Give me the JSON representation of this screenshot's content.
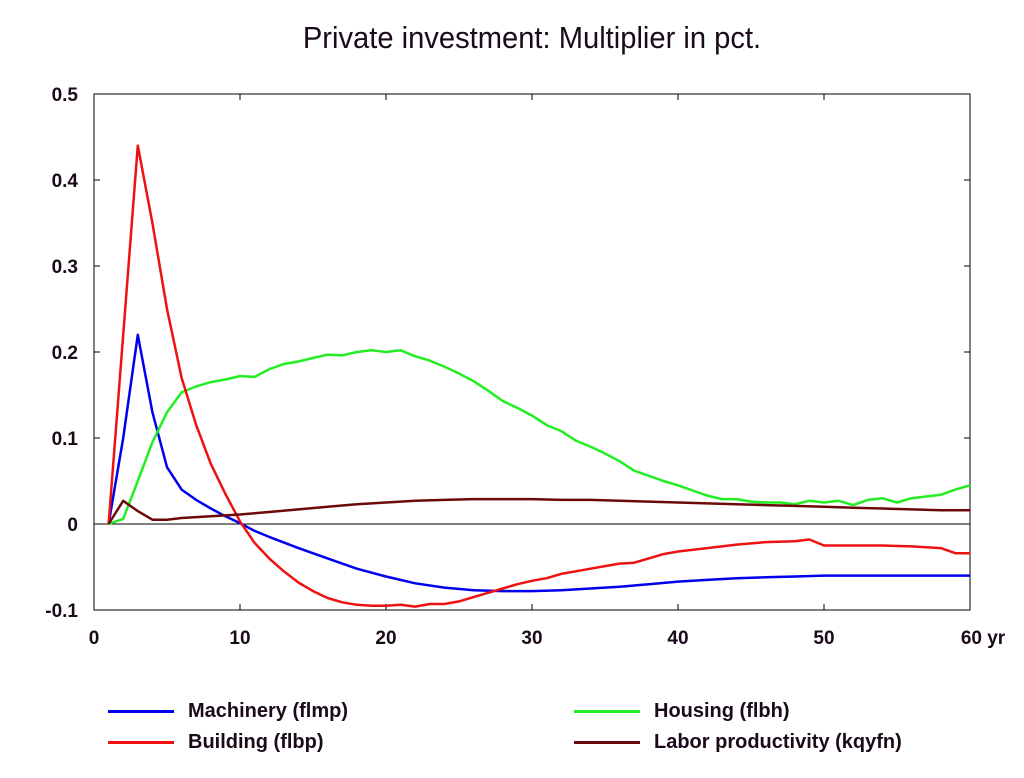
{
  "chart_data": {
    "type": "line",
    "title": "Private investment: Multiplier in pct.",
    "xlabel": "",
    "ylabel": "",
    "x_unit": "yr",
    "xlim": [
      0,
      60
    ],
    "ylim": [
      -0.1,
      0.5
    ],
    "x_ticks": [
      0,
      10,
      20,
      30,
      40,
      50,
      60
    ],
    "x_tick_labels": [
      "0",
      "10",
      "20",
      "30",
      "40",
      "50",
      "60 yr"
    ],
    "y_ticks": [
      -0.1,
      0,
      0.1,
      0.2,
      0.3,
      0.4,
      0.5
    ],
    "y_tick_labels": [
      "-0.1",
      "0",
      "0.1",
      "0.2",
      "0.3",
      "0.4",
      "0.5"
    ],
    "zero_line": true,
    "grid": false,
    "legend_position": "bottom",
    "series": [
      {
        "name": "Machinery (flmp)",
        "color": "#0000ee",
        "x": [
          1,
          2,
          3,
          4,
          5,
          6,
          7,
          8,
          9,
          10,
          11,
          12,
          14,
          16,
          18,
          20,
          22,
          24,
          26,
          28,
          30,
          32,
          34,
          36,
          38,
          40,
          42,
          44,
          46,
          48,
          50,
          52,
          54,
          56,
          58,
          60
        ],
        "y": [
          0,
          0.1,
          0.22,
          0.13,
          0.066,
          0.04,
          0.028,
          0.018,
          0.009,
          0.001,
          -0.008,
          -0.015,
          -0.028,
          -0.04,
          -0.052,
          -0.061,
          -0.069,
          -0.074,
          -0.077,
          -0.078,
          -0.078,
          -0.077,
          -0.075,
          -0.073,
          -0.07,
          -0.067,
          -0.065,
          -0.063,
          -0.062,
          -0.061,
          -0.06,
          -0.06,
          -0.06,
          -0.06,
          -0.06,
          -0.06
        ]
      },
      {
        "name": "Housing (flbh)",
        "color": "#22ee22",
        "x": [
          1,
          2,
          3,
          4,
          5,
          6,
          7,
          8,
          9,
          10,
          11,
          12,
          13,
          14,
          15,
          16,
          17,
          18,
          19,
          20,
          21,
          22,
          23,
          24,
          25,
          26,
          27,
          28,
          29,
          30,
          31,
          32,
          33,
          34,
          35,
          36,
          37,
          38,
          39,
          40,
          41,
          42,
          43,
          44,
          45,
          46,
          47,
          48,
          49,
          50,
          51,
          52,
          53,
          54,
          55,
          56,
          57,
          58,
          59,
          60
        ],
        "y": [
          0,
          0.006,
          0.05,
          0.095,
          0.13,
          0.153,
          0.16,
          0.165,
          0.168,
          0.172,
          0.171,
          0.18,
          0.186,
          0.189,
          0.193,
          0.197,
          0.196,
          0.2,
          0.202,
          0.2,
          0.202,
          0.195,
          0.19,
          0.183,
          0.175,
          0.166,
          0.155,
          0.143,
          0.135,
          0.126,
          0.115,
          0.108,
          0.097,
          0.09,
          0.082,
          0.073,
          0.062,
          0.056,
          0.05,
          0.045,
          0.039,
          0.033,
          0.029,
          0.029,
          0.026,
          0.025,
          0.025,
          0.023,
          0.027,
          0.025,
          0.027,
          0.022,
          0.028,
          0.03,
          0.025,
          0.03,
          0.032,
          0.034,
          0.04,
          0.045
        ]
      },
      {
        "name": "Building (flbp)",
        "color": "#ee1111",
        "x": [
          1,
          2,
          3,
          4,
          5,
          6,
          7,
          8,
          9,
          10,
          11,
          12,
          13,
          14,
          15,
          16,
          17,
          18,
          19,
          20,
          21,
          22,
          23,
          24,
          25,
          26,
          27,
          28,
          29,
          30,
          31,
          32,
          33,
          34,
          35,
          36,
          37,
          38,
          39,
          40,
          42,
          44,
          46,
          48,
          49,
          50,
          52,
          54,
          56,
          58,
          59,
          60
        ],
        "y": [
          0,
          0.22,
          0.44,
          0.35,
          0.25,
          0.17,
          0.115,
          0.07,
          0.035,
          0.003,
          -0.022,
          -0.04,
          -0.055,
          -0.068,
          -0.078,
          -0.086,
          -0.091,
          -0.094,
          -0.095,
          -0.095,
          -0.094,
          -0.096,
          -0.093,
          -0.093,
          -0.09,
          -0.085,
          -0.08,
          -0.075,
          -0.07,
          -0.066,
          -0.063,
          -0.058,
          -0.055,
          -0.052,
          -0.049,
          -0.046,
          -0.045,
          -0.04,
          -0.035,
          -0.032,
          -0.028,
          -0.024,
          -0.021,
          -0.02,
          -0.018,
          -0.025,
          -0.025,
          -0.025,
          -0.026,
          -0.028,
          -0.034,
          -0.034
        ]
      },
      {
        "name": "Labor productivity (kqyfn)",
        "color": "#6b0a0a",
        "x": [
          1,
          2,
          3,
          4,
          5,
          6,
          8,
          10,
          12,
          14,
          16,
          18,
          20,
          22,
          24,
          26,
          28,
          30,
          32,
          34,
          36,
          38,
          40,
          42,
          44,
          46,
          48,
          50,
          52,
          54,
          56,
          58,
          60
        ],
        "y": [
          0,
          0.027,
          0.015,
          0.005,
          0.005,
          0.007,
          0.009,
          0.011,
          0.014,
          0.017,
          0.02,
          0.023,
          0.025,
          0.027,
          0.028,
          0.029,
          0.029,
          0.029,
          0.028,
          0.028,
          0.027,
          0.026,
          0.025,
          0.024,
          0.023,
          0.022,
          0.021,
          0.02,
          0.019,
          0.018,
          0.017,
          0.016,
          0.016
        ]
      }
    ]
  },
  "legend": {
    "items": [
      {
        "label": "Machinery (flmp)",
        "color": "#0000ee"
      },
      {
        "label": "Housing (flbh)",
        "color": "#22ee22"
      },
      {
        "label": "Building (flbp)",
        "color": "#ee1111"
      },
      {
        "label": "Labor productivity (kqyfn)",
        "color": "#6b0a0a"
      }
    ]
  }
}
